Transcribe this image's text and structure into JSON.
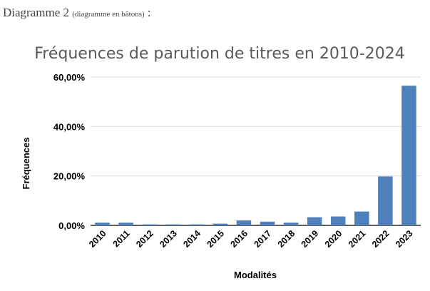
{
  "caption": {
    "main": "Diagramme 2",
    "detail": "(diagramme en bâtons)",
    "suffix": " :"
  },
  "chart_data": {
    "type": "bar",
    "title": "Fréquences de parution de titres en 2010-2024",
    "xlabel": "Modalités",
    "ylabel": "Fréquences",
    "categories": [
      "2010",
      "2011",
      "2012",
      "2013",
      "2014",
      "2015",
      "2016",
      "2017",
      "2018",
      "2019",
      "2020",
      "2021",
      "2022",
      "2023"
    ],
    "values": [
      1.1,
      1.1,
      0.4,
      0.4,
      0.4,
      0.7,
      2.0,
      1.5,
      1.1,
      3.3,
      3.6,
      5.6,
      19.8,
      56.5
    ],
    "value_format": "percent",
    "yticks": [
      "0,00%",
      "20,00%",
      "40,00%",
      "60,00%"
    ],
    "ytick_values": [
      0,
      20,
      40,
      60
    ],
    "ylim": [
      0,
      60
    ],
    "grid": true,
    "legend": "none",
    "bar_color": "#4f81bd",
    "grid_color": "#d9d9d9"
  }
}
